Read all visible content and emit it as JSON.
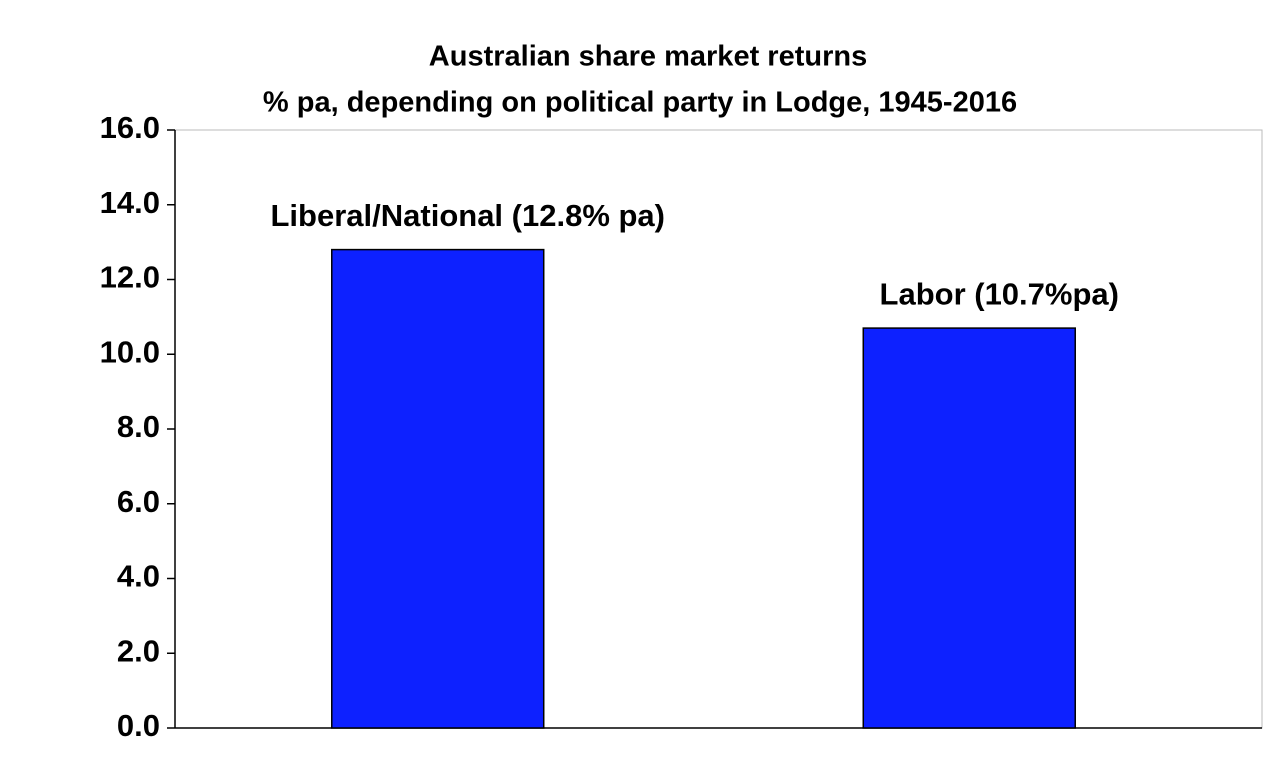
{
  "chart_data": {
    "type": "bar",
    "title": "Australian share market returns",
    "subtitle": "% pa, depending on political party in Lodge, 1945-2016",
    "categories": [
      null,
      null
    ],
    "values": [
      12.8,
      10.7
    ],
    "value_labels": [
      "Liberal/National (12.8% pa)",
      "Labor (10.7%pa)"
    ],
    "color": "#0d21ff",
    "ylim": [
      0,
      16
    ],
    "yticks": [
      {
        "value": 0,
        "label": "0.0"
      },
      {
        "value": 2,
        "label": "2.0"
      },
      {
        "value": 4,
        "label": "4.0"
      },
      {
        "value": 6,
        "label": "6.0"
      },
      {
        "value": 8,
        "label": "8.0"
      },
      {
        "value": 10,
        "label": "10.0"
      },
      {
        "value": 12,
        "label": "12.0"
      },
      {
        "value": 14,
        "label": "14.0"
      },
      {
        "value": 16,
        "label": "16.0"
      }
    ],
    "grid": false
  }
}
